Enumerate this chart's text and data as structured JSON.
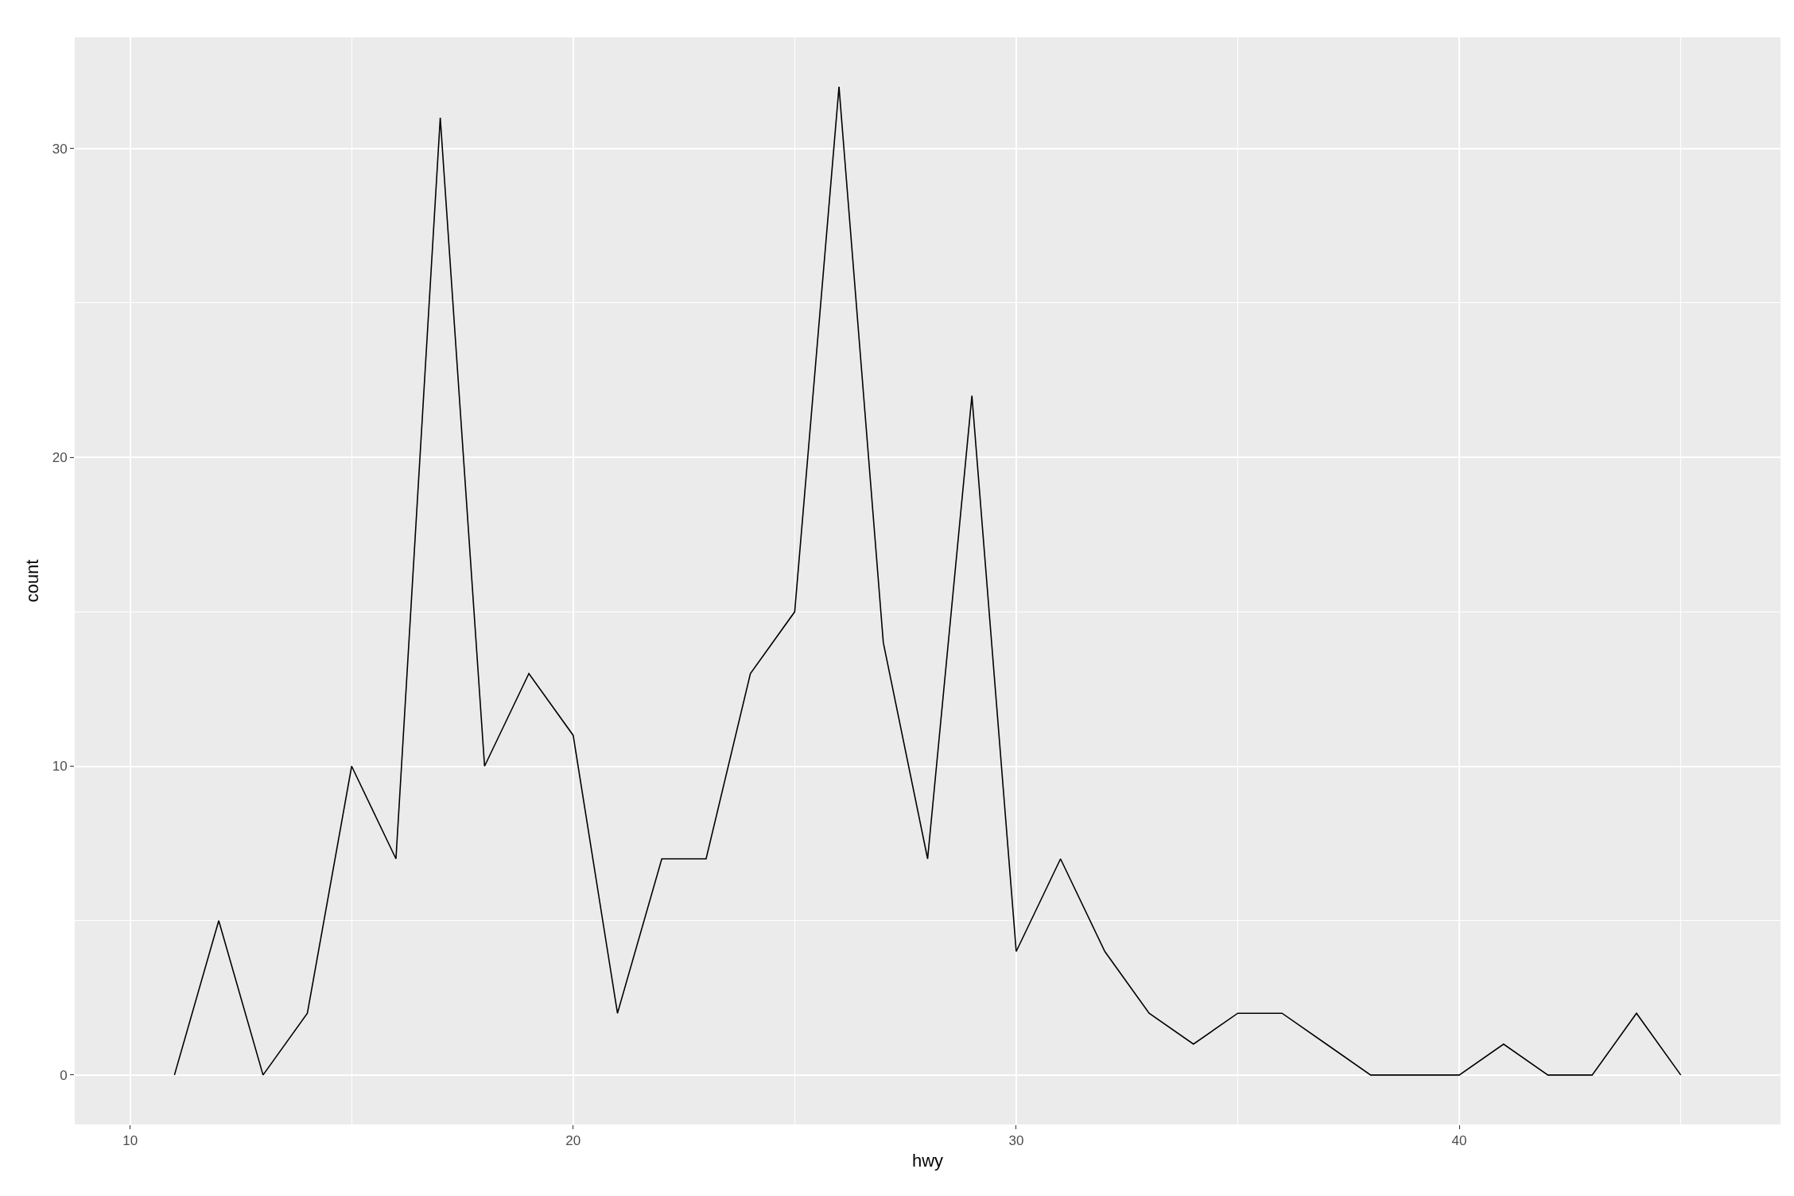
{
  "chart_data": {
    "type": "line",
    "xlabel": "hwy",
    "ylabel": "count",
    "x": [
      11,
      12,
      13,
      14,
      15,
      16,
      17,
      18,
      19,
      20,
      21,
      22,
      23,
      24,
      25,
      26,
      27,
      28,
      29,
      30,
      31,
      32,
      33,
      34,
      35,
      36,
      37,
      38,
      39,
      40,
      41,
      42,
      43,
      44,
      45
    ],
    "series": [
      {
        "color": "#000000",
        "values": [
          0,
          5,
          0,
          2,
          10,
          7,
          31,
          10,
          13,
          11,
          2,
          7,
          7,
          13,
          15,
          32,
          14,
          7,
          22,
          4,
          7,
          4,
          2,
          1,
          2,
          2,
          1,
          0,
          0,
          0,
          1,
          0,
          0,
          2,
          0
        ]
      }
    ],
    "xlim": [
      8.75,
      47.25
    ],
    "ylim": [
      -1.6,
      33.6
    ],
    "xticks": [
      10,
      {
        "value": 15,
        "label": null
      },
      20,
      {
        "value": 25,
        "label": null
      },
      30,
      {
        "value": 35,
        "label": null
      },
      40,
      {
        "value": 45,
        "label": null
      }
    ],
    "yticks": [
      0,
      {
        "value": 5,
        "label": null
      },
      10,
      {
        "value": 15,
        "label": null
      },
      20,
      {
        "value": 25,
        "label": null
      },
      30
    ],
    "grid": true,
    "line_style": "solid"
  }
}
